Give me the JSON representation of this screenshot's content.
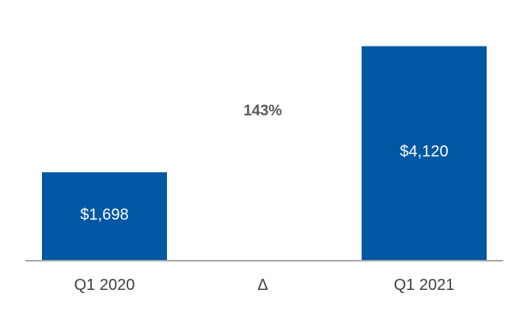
{
  "chart_data": {
    "type": "bar",
    "categories": [
      "Q1 2020",
      "Δ",
      "Q1 2021"
    ],
    "values": [
      1698,
      null,
      4120
    ],
    "value_labels": [
      "$1,698",
      "",
      "$4,120"
    ],
    "delta_label": "143%",
    "title": "",
    "xlabel": "",
    "ylabel": "",
    "ylim": [
      0,
      4400
    ],
    "grid": false,
    "legend": "none",
    "colors": {
      "bar": "#0057A3",
      "axis": "#A6A6A6",
      "category_text": "#404040",
      "delta_text": "#595959"
    }
  }
}
